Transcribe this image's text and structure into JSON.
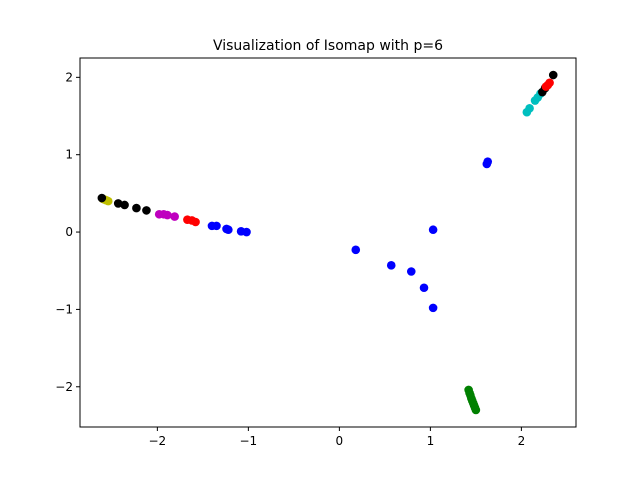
{
  "chart_data": {
    "type": "scatter",
    "title": "Visualization of Isomap with p=6",
    "xlabel": "",
    "ylabel": "",
    "xlim": [
      -2.85,
      2.6
    ],
    "ylim": [
      -2.52,
      2.25
    ],
    "xticks": [
      -2,
      -1,
      0,
      1,
      2
    ],
    "yticks": [
      -2,
      -1,
      0,
      1,
      2
    ],
    "grid": false,
    "colors": {
      "black": "#000000",
      "yellow": "#bfbf00",
      "magenta": "#bf00bf",
      "red": "#ff0000",
      "blue": "#0000ff",
      "green": "#008000",
      "cyan": "#00bfbf"
    },
    "points": [
      {
        "x": -2.6,
        "y": 0.43,
        "c": "yellow"
      },
      {
        "x": -2.58,
        "y": 0.42,
        "c": "yellow"
      },
      {
        "x": -2.56,
        "y": 0.41,
        "c": "yellow"
      },
      {
        "x": -2.54,
        "y": 0.4,
        "c": "yellow"
      },
      {
        "x": -2.61,
        "y": 0.44,
        "c": "black"
      },
      {
        "x": -2.43,
        "y": 0.37,
        "c": "black"
      },
      {
        "x": -2.36,
        "y": 0.35,
        "c": "black"
      },
      {
        "x": -2.23,
        "y": 0.31,
        "c": "black"
      },
      {
        "x": -2.12,
        "y": 0.28,
        "c": "black"
      },
      {
        "x": -1.98,
        "y": 0.23,
        "c": "magenta"
      },
      {
        "x": -1.93,
        "y": 0.23,
        "c": "magenta"
      },
      {
        "x": -1.89,
        "y": 0.22,
        "c": "magenta"
      },
      {
        "x": -1.81,
        "y": 0.2,
        "c": "magenta"
      },
      {
        "x": -1.67,
        "y": 0.16,
        "c": "red"
      },
      {
        "x": -1.62,
        "y": 0.15,
        "c": "red"
      },
      {
        "x": -1.58,
        "y": 0.13,
        "c": "red"
      },
      {
        "x": -1.4,
        "y": 0.08,
        "c": "blue"
      },
      {
        "x": -1.35,
        "y": 0.08,
        "c": "blue"
      },
      {
        "x": -1.24,
        "y": 0.04,
        "c": "blue"
      },
      {
        "x": -1.22,
        "y": 0.03,
        "c": "blue"
      },
      {
        "x": -1.08,
        "y": 0.01,
        "c": "blue"
      },
      {
        "x": -1.02,
        "y": 0.0,
        "c": "blue"
      },
      {
        "x": 0.18,
        "y": -0.23,
        "c": "blue"
      },
      {
        "x": 0.57,
        "y": -0.43,
        "c": "blue"
      },
      {
        "x": 0.79,
        "y": -0.51,
        "c": "blue"
      },
      {
        "x": 0.93,
        "y": -0.72,
        "c": "blue"
      },
      {
        "x": 1.03,
        "y": -0.98,
        "c": "blue"
      },
      {
        "x": 1.03,
        "y": 0.03,
        "c": "blue"
      },
      {
        "x": 1.62,
        "y": 0.88,
        "c": "blue"
      },
      {
        "x": 1.63,
        "y": 0.91,
        "c": "blue"
      },
      {
        "x": 1.42,
        "y": -2.04,
        "c": "green"
      },
      {
        "x": 1.43,
        "y": -2.08,
        "c": "green"
      },
      {
        "x": 1.44,
        "y": -2.11,
        "c": "green"
      },
      {
        "x": 1.45,
        "y": -2.15,
        "c": "green"
      },
      {
        "x": 1.46,
        "y": -2.18,
        "c": "green"
      },
      {
        "x": 1.47,
        "y": -2.21,
        "c": "green"
      },
      {
        "x": 1.48,
        "y": -2.24,
        "c": "green"
      },
      {
        "x": 1.49,
        "y": -2.27,
        "c": "green"
      },
      {
        "x": 1.5,
        "y": -2.3,
        "c": "green"
      },
      {
        "x": 2.06,
        "y": 1.55,
        "c": "cyan"
      },
      {
        "x": 2.09,
        "y": 1.6,
        "c": "cyan"
      },
      {
        "x": 2.15,
        "y": 1.7,
        "c": "cyan"
      },
      {
        "x": 2.18,
        "y": 1.74,
        "c": "cyan"
      },
      {
        "x": 2.21,
        "y": 1.79,
        "c": "cyan"
      },
      {
        "x": 2.23,
        "y": 1.81,
        "c": "black"
      },
      {
        "x": 2.26,
        "y": 1.86,
        "c": "black"
      },
      {
        "x": 2.27,
        "y": 1.88,
        "c": "red"
      },
      {
        "x": 2.29,
        "y": 1.9,
        "c": "red"
      },
      {
        "x": 2.31,
        "y": 1.93,
        "c": "red"
      },
      {
        "x": 2.35,
        "y": 2.03,
        "c": "black"
      }
    ]
  }
}
